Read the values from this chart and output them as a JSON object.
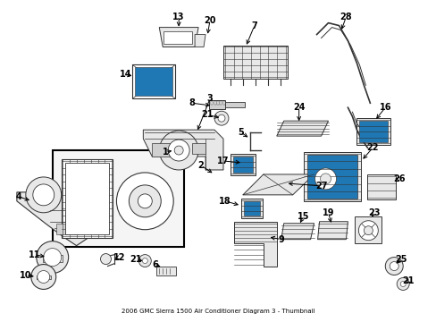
{
  "title": "2006 GMC Sierra 1500 Air Conditioner Diagram 3 - Thumbnail",
  "bg_color": "#ffffff",
  "fig_width": 4.89,
  "fig_height": 3.6,
  "dpi": 100,
  "line_color": "#333333",
  "fill_light": "#e8e8e8",
  "fill_mid": "#d0d0d0",
  "label_fontsize": 7.0,
  "title_fontsize": 5.0
}
